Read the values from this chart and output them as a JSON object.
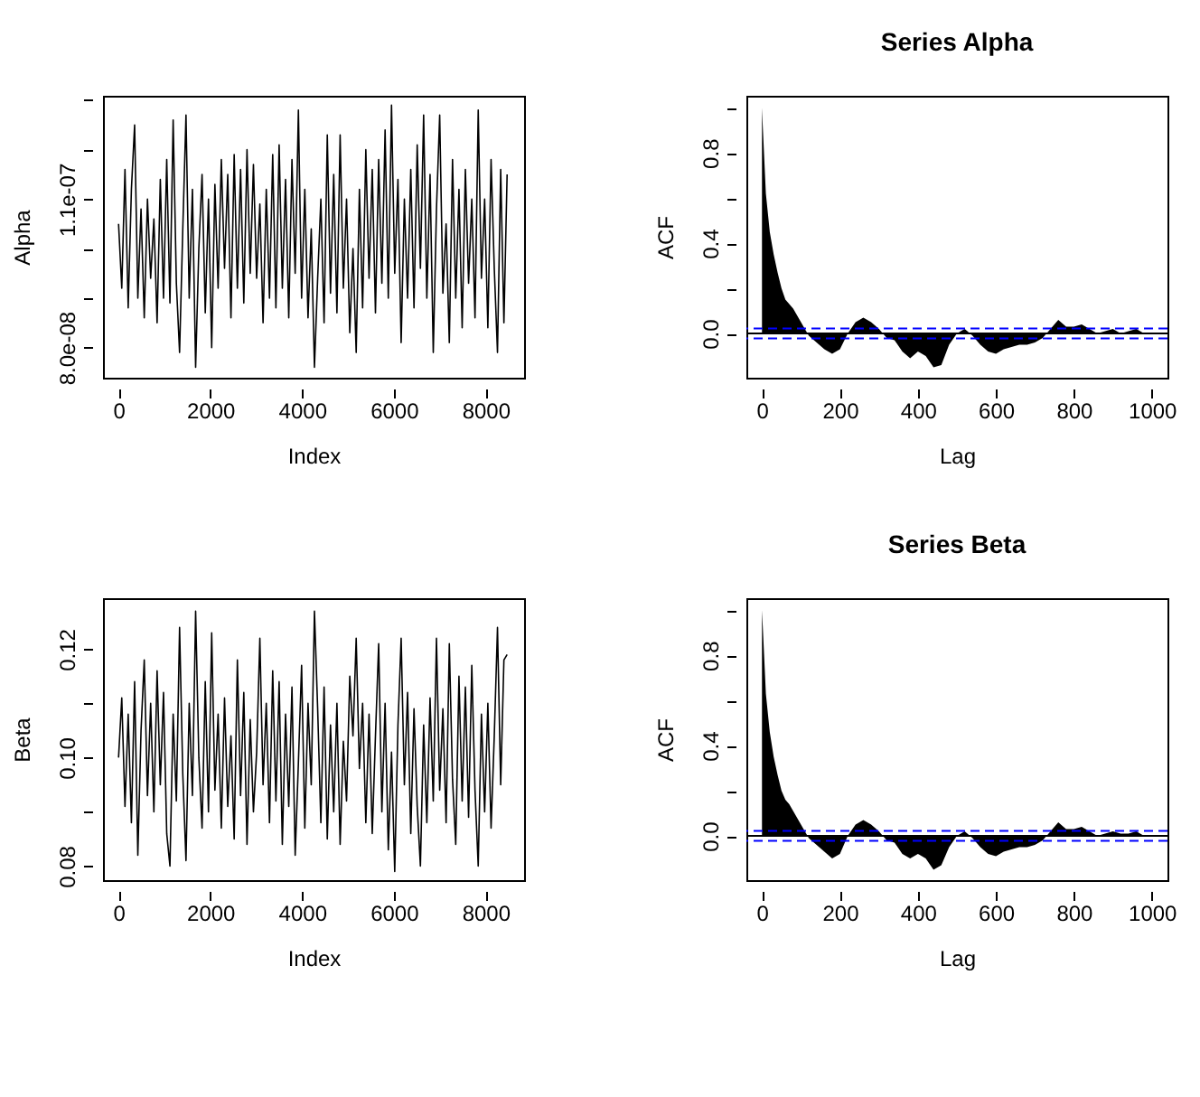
{
  "chart_data": [
    {
      "type": "line",
      "xlabel": "Index",
      "ylabel": "Alpha",
      "xlim": [
        -339,
        8840
      ],
      "ylim": [
        7.39e-08,
        1.309e-07
      ],
      "xticks": [
        0,
        2000,
        4000,
        6000,
        8000
      ],
      "yticks": [
        {
          "value": 8e-08,
          "label": "8.0e-08"
        },
        {
          "value": 9e-08,
          "label": null
        },
        {
          "value": 1e-07,
          "label": null
        },
        {
          "value": 1.1e-07,
          "label": "1.1e-07"
        },
        {
          "value": 1.2e-07,
          "label": null
        },
        {
          "value": 1.3e-07,
          "label": null
        }
      ],
      "grid": false,
      "marker": "none",
      "line_style": "solid",
      "x": [
        0,
        70,
        140,
        210,
        280,
        350,
        420,
        490,
        560,
        630,
        700,
        770,
        840,
        910,
        980,
        1050,
        1120,
        1190,
        1260,
        1330,
        1400,
        1470,
        1540,
        1610,
        1680,
        1750,
        1820,
        1890,
        1960,
        2030,
        2100,
        2170,
        2240,
        2310,
        2380,
        2450,
        2520,
        2590,
        2660,
        2730,
        2800,
        2870,
        2940,
        3010,
        3080,
        3150,
        3220,
        3290,
        3360,
        3430,
        3500,
        3570,
        3640,
        3710,
        3780,
        3850,
        3920,
        3990,
        4060,
        4130,
        4200,
        4270,
        4340,
        4410,
        4480,
        4550,
        4620,
        4690,
        4760,
        4830,
        4900,
        4970,
        5040,
        5110,
        5180,
        5250,
        5320,
        5390,
        5460,
        5530,
        5600,
        5670,
        5740,
        5810,
        5880,
        5950,
        6020,
        6090,
        6160,
        6230,
        6300,
        6370,
        6440,
        6510,
        6580,
        6650,
        6720,
        6790,
        6860,
        6930,
        7000,
        7070,
        7140,
        7210,
        7280,
        7350,
        7420,
        7490,
        7560,
        7630,
        7700,
        7770,
        7840,
        7910,
        7980,
        8050,
        8120,
        8190,
        8260,
        8330,
        8400,
        8470
      ],
      "series": [
        {
          "color": "#000000",
          "values": [
            1.05e-07,
            9.2e-08,
            1.16e-07,
            8.8e-08,
            1.12e-07,
            1.25e-07,
            9e-08,
            1.08e-07,
            8.6e-08,
            1.1e-07,
            9.4e-08,
            1.06e-07,
            8.5e-08,
            1.14e-07,
            9e-08,
            1.18e-07,
            8.9e-08,
            1.26e-07,
            9.3e-08,
            7.9e-08,
            1.04e-07,
            1.27e-07,
            9e-08,
            1.12e-07,
            7.6e-08,
            1e-07,
            1.15e-07,
            8.7e-08,
            1.1e-07,
            8e-08,
            1.13e-07,
            9.2e-08,
            1.18e-07,
            9.6e-08,
            1.15e-07,
            8.6e-08,
            1.19e-07,
            9.2e-08,
            1.16e-07,
            8.9e-08,
            1.2e-07,
            9.5e-08,
            1.17e-07,
            9.4e-08,
            1.09e-07,
            8.5e-08,
            1.12e-07,
            9e-08,
            1.19e-07,
            8.8e-08,
            1.21e-07,
            9.2e-08,
            1.14e-07,
            8.6e-08,
            1.18e-07,
            9.5e-08,
            1.28e-07,
            9e-08,
            1.12e-07,
            8.6e-08,
            1.04e-07,
            7.6e-08,
            9.4e-08,
            1.1e-07,
            8.5e-08,
            1.23e-07,
            9.1e-08,
            1.15e-07,
            8.7e-08,
            1.23e-07,
            9.2e-08,
            1.1e-07,
            8.3e-08,
            1e-07,
            7.9e-08,
            1.12e-07,
            8.8e-08,
            1.2e-07,
            9.4e-08,
            1.16e-07,
            8.7e-08,
            1.18e-07,
            9.3e-08,
            1.24e-07,
            9e-08,
            1.29e-07,
            9.5e-08,
            1.14e-07,
            8.1e-08,
            1.1e-07,
            9e-08,
            1.16e-07,
            8.8e-08,
            1.21e-07,
            9.6e-08,
            1.27e-07,
            9e-08,
            1.15e-07,
            7.9e-08,
            1.08e-07,
            1.27e-07,
            9.1e-08,
            1.05e-07,
            8.1e-08,
            1.18e-07,
            9e-08,
            1.12e-07,
            8.4e-08,
            1.16e-07,
            9.3e-08,
            1.1e-07,
            8.6e-08,
            1.28e-07,
            9.4e-08,
            1.1e-07,
            8.4e-08,
            1.18e-07,
            9.6e-08,
            7.9e-08,
            1.16e-07,
            8.5e-08,
            1.15e-07
          ]
        }
      ]
    },
    {
      "type": "area",
      "title": "Series  Alpha",
      "xlabel": "Lag",
      "ylabel": "ACF",
      "xlim": [
        -40,
        1040
      ],
      "ylim": [
        -0.196,
        1.053
      ],
      "xticks": [
        0,
        200,
        400,
        600,
        800,
        1000
      ],
      "yticks": [
        {
          "value": 0,
          "label": "0.0"
        },
        {
          "value": 0.2,
          "label": null
        },
        {
          "value": 0.4,
          "label": "0.4"
        },
        {
          "value": 0.6,
          "label": null
        },
        {
          "value": 0.8,
          "label": "0.8"
        },
        {
          "value": 1,
          "label": null
        }
      ],
      "grid": false,
      "ref_lines": [
        {
          "axis": "y",
          "value": 0,
          "color": "#000000",
          "line_style": "solid"
        },
        {
          "axis": "y",
          "value": 0.022,
          "color": "#0000ff",
          "line_style": "dashed"
        },
        {
          "axis": "y",
          "value": -0.022,
          "color": "#0000ff",
          "line_style": "dashed"
        }
      ],
      "x": [
        0,
        2,
        10,
        20,
        30,
        40,
        50,
        60,
        70,
        80,
        90,
        100,
        110,
        120,
        140,
        160,
        180,
        200,
        220,
        240,
        260,
        280,
        300,
        320,
        340,
        360,
        380,
        400,
        420,
        440,
        460,
        480,
        500,
        520,
        540,
        560,
        580,
        600,
        620,
        640,
        660,
        680,
        700,
        720,
        740,
        760,
        780,
        800,
        820,
        840,
        860,
        880,
        900,
        920,
        940,
        960,
        980,
        1000
      ],
      "series": [
        {
          "color": "#000000",
          "values": [
            1.0,
            0.92,
            0.62,
            0.45,
            0.35,
            0.27,
            0.2,
            0.15,
            0.13,
            0.11,
            0.08,
            0.05,
            0.02,
            -0.01,
            -0.04,
            -0.07,
            -0.09,
            -0.07,
            0.0,
            0.05,
            0.07,
            0.05,
            0.02,
            -0.02,
            -0.03,
            -0.08,
            -0.11,
            -0.08,
            -0.1,
            -0.15,
            -0.14,
            -0.05,
            0.0,
            0.02,
            -0.01,
            -0.05,
            -0.08,
            -0.09,
            -0.07,
            -0.06,
            -0.05,
            -0.05,
            -0.04,
            -0.02,
            0.02,
            0.06,
            0.03,
            0.03,
            0.04,
            0.02,
            0.0,
            0.01,
            0.02,
            0.0,
            0.01,
            0.02,
            0.0,
            0.0
          ]
        }
      ]
    },
    {
      "type": "line",
      "xlabel": "Index",
      "ylabel": "Beta",
      "xlim": [
        -339,
        8840
      ],
      "ylim": [
        0.0774,
        0.1294
      ],
      "xticks": [
        0,
        2000,
        4000,
        6000,
        8000
      ],
      "yticks": [
        {
          "value": 0.08,
          "label": "0.08"
        },
        {
          "value": 0.09,
          "label": null
        },
        {
          "value": 0.1,
          "label": "0.10"
        },
        {
          "value": 0.11,
          "label": null
        },
        {
          "value": 0.12,
          "label": "0.12"
        }
      ],
      "grid": false,
      "marker": "none",
      "line_style": "solid",
      "x": [
        0,
        70,
        140,
        210,
        280,
        350,
        420,
        490,
        560,
        630,
        700,
        770,
        840,
        910,
        980,
        1050,
        1120,
        1190,
        1260,
        1330,
        1400,
        1470,
        1540,
        1610,
        1680,
        1750,
        1820,
        1890,
        1960,
        2030,
        2100,
        2170,
        2240,
        2310,
        2380,
        2450,
        2520,
        2590,
        2660,
        2730,
        2800,
        2870,
        2940,
        3010,
        3080,
        3150,
        3220,
        3290,
        3360,
        3430,
        3500,
        3570,
        3640,
        3710,
        3780,
        3850,
        3920,
        3990,
        4060,
        4130,
        4200,
        4270,
        4340,
        4410,
        4480,
        4550,
        4620,
        4690,
        4760,
        4830,
        4900,
        4970,
        5040,
        5110,
        5180,
        5250,
        5320,
        5390,
        5460,
        5530,
        5600,
        5670,
        5740,
        5810,
        5880,
        5950,
        6020,
        6090,
        6160,
        6230,
        6300,
        6370,
        6440,
        6510,
        6580,
        6650,
        6720,
        6790,
        6860,
        6930,
        7000,
        7070,
        7140,
        7210,
        7280,
        7350,
        7420,
        7490,
        7560,
        7630,
        7700,
        7770,
        7840,
        7910,
        7980,
        8050,
        8120,
        8190,
        8260,
        8330,
        8400,
        8470
      ],
      "series": [
        {
          "color": "#000000",
          "values": [
            0.1,
            0.111,
            0.091,
            0.108,
            0.088,
            0.114,
            0.082,
            0.105,
            0.118,
            0.093,
            0.11,
            0.09,
            0.116,
            0.095,
            0.112,
            0.086,
            0.08,
            0.108,
            0.092,
            0.124,
            0.097,
            0.081,
            0.11,
            0.093,
            0.127,
            0.1,
            0.087,
            0.114,
            0.09,
            0.123,
            0.094,
            0.108,
            0.087,
            0.111,
            0.091,
            0.104,
            0.085,
            0.118,
            0.093,
            0.112,
            0.084,
            0.107,
            0.09,
            0.101,
            0.122,
            0.095,
            0.11,
            0.088,
            0.116,
            0.092,
            0.114,
            0.084,
            0.108,
            0.091,
            0.113,
            0.082,
            0.099,
            0.117,
            0.087,
            0.11,
            0.095,
            0.127,
            0.109,
            0.088,
            0.113,
            0.085,
            0.106,
            0.09,
            0.11,
            0.084,
            0.103,
            0.092,
            0.115,
            0.104,
            0.122,
            0.098,
            0.11,
            0.088,
            0.108,
            0.086,
            0.104,
            0.121,
            0.09,
            0.11,
            0.083,
            0.101,
            0.079,
            0.106,
            0.122,
            0.095,
            0.112,
            0.086,
            0.109,
            0.091,
            0.08,
            0.106,
            0.088,
            0.111,
            0.092,
            0.122,
            0.094,
            0.109,
            0.088,
            0.121,
            0.096,
            0.084,
            0.115,
            0.092,
            0.113,
            0.089,
            0.117,
            0.094,
            0.08,
            0.108,
            0.09,
            0.11,
            0.087,
            0.104,
            0.124,
            0.095,
            0.118,
            0.119
          ]
        }
      ]
    },
    {
      "type": "area",
      "title": "Series  Beta",
      "xlabel": "Lag",
      "ylabel": "ACF",
      "xlim": [
        -40,
        1040
      ],
      "ylim": [
        -0.196,
        1.053
      ],
      "xticks": [
        0,
        200,
        400,
        600,
        800,
        1000
      ],
      "yticks": [
        {
          "value": 0,
          "label": "0.0"
        },
        {
          "value": 0.2,
          "label": null
        },
        {
          "value": 0.4,
          "label": "0.4"
        },
        {
          "value": 0.6,
          "label": null
        },
        {
          "value": 0.8,
          "label": "0.8"
        },
        {
          "value": 1,
          "label": null
        }
      ],
      "grid": false,
      "ref_lines": [
        {
          "axis": "y",
          "value": 0,
          "color": "#000000",
          "line_style": "solid"
        },
        {
          "axis": "y",
          "value": 0.022,
          "color": "#0000ff",
          "line_style": "dashed"
        },
        {
          "axis": "y",
          "value": -0.022,
          "color": "#0000ff",
          "line_style": "dashed"
        }
      ],
      "x": [
        0,
        2,
        10,
        20,
        30,
        40,
        50,
        60,
        70,
        80,
        90,
        100,
        110,
        120,
        140,
        160,
        180,
        200,
        220,
        240,
        260,
        280,
        300,
        320,
        340,
        360,
        380,
        400,
        420,
        440,
        460,
        480,
        500,
        520,
        540,
        560,
        580,
        600,
        620,
        640,
        660,
        680,
        700,
        720,
        740,
        760,
        780,
        800,
        820,
        840,
        860,
        880,
        900,
        920,
        940,
        960,
        980,
        1000
      ],
      "series": [
        {
          "color": "#000000",
          "values": [
            1.0,
            0.93,
            0.63,
            0.46,
            0.35,
            0.27,
            0.2,
            0.16,
            0.14,
            0.11,
            0.08,
            0.05,
            0.02,
            -0.01,
            -0.04,
            -0.07,
            -0.1,
            -0.08,
            0.0,
            0.05,
            0.07,
            0.05,
            0.02,
            -0.02,
            -0.03,
            -0.08,
            -0.1,
            -0.08,
            -0.1,
            -0.15,
            -0.13,
            -0.05,
            0.0,
            0.02,
            -0.01,
            -0.05,
            -0.08,
            -0.09,
            -0.07,
            -0.06,
            -0.05,
            -0.05,
            -0.04,
            -0.02,
            0.02,
            0.06,
            0.03,
            0.03,
            0.04,
            0.02,
            0.0,
            0.01,
            0.02,
            0.01,
            0.01,
            0.02,
            0.0,
            0.0
          ]
        }
      ]
    }
  ]
}
